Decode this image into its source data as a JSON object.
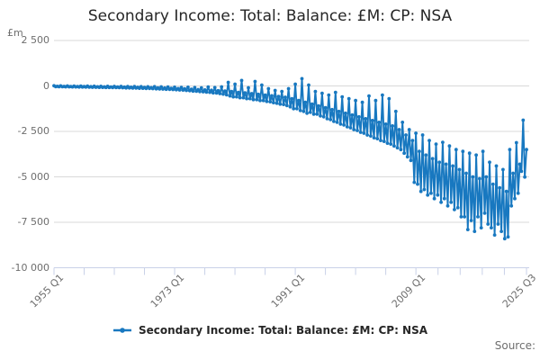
{
  "title": "Secondary Income: Total: Balance: £M: CP: NSA",
  "y_axis": {
    "unit": "£m",
    "ticks": [
      2500,
      0,
      -2500,
      -5000,
      -7500,
      -10000
    ],
    "tick_labels": [
      "2 500",
      "0",
      "-2 500",
      "-5 000",
      "-7 500",
      "-10 000"
    ]
  },
  "x_axis": {
    "labels": [
      "1955 Q1",
      "1973 Q1",
      "1991 Q1",
      "2009 Q1",
      "2025 Q3"
    ],
    "major_indices": [
      0,
      72,
      144,
      216,
      282
    ],
    "minor_indices": [
      18,
      36,
      54,
      90,
      108,
      126,
      162,
      180,
      198,
      229.2,
      242.4,
      255.6,
      268.8
    ]
  },
  "legend": {
    "label": "Secondary Income: Total: Balance: £M: CP: NSA"
  },
  "source": "Source:",
  "colors": {
    "line": "#1878c0",
    "grid": "#d9d9d9",
    "axis": "#c9d1e8",
    "muted_text": "#6e6e6e",
    "title_text": "#262626"
  },
  "chart_data": {
    "type": "line",
    "title": "Secondary Income: Total: Balance: £M: CP: NSA",
    "series_name": "Secondary Income: Total: Balance: £M: CP: NSA",
    "xlabel": "",
    "ylabel": "£m",
    "frequency": "quarterly",
    "start": "1955 Q1",
    "end": "2025 Q3",
    "ylim": [
      -10000,
      2500
    ],
    "grid": "horizontal",
    "legend_position": "bottom",
    "values": [
      10,
      -40,
      -20,
      -45,
      5,
      -45,
      -25,
      -50,
      0,
      -50,
      -30,
      -55,
      -5,
      -55,
      -30,
      -60,
      -10,
      -60,
      -35,
      -65,
      -10,
      -70,
      -40,
      -75,
      -15,
      -75,
      -45,
      -80,
      -20,
      -80,
      -50,
      -85,
      -20,
      -85,
      -55,
      -90,
      -25,
      -90,
      -60,
      -95,
      -25,
      -100,
      -65,
      -110,
      -30,
      -110,
      -70,
      -120,
      -35,
      -120,
      -75,
      -130,
      -40,
      -130,
      -85,
      -140,
      -45,
      -140,
      -95,
      -150,
      -40,
      -160,
      -105,
      -170,
      -50,
      -175,
      -115,
      -185,
      -60,
      -190,
      -130,
      -200,
      -70,
      -210,
      -145,
      -225,
      -80,
      -230,
      -160,
      -250,
      -70,
      -260,
      -180,
      -280,
      -90,
      -290,
      -200,
      -310,
      -110,
      -320,
      -220,
      -340,
      -60,
      -350,
      -240,
      -380,
      -90,
      -390,
      -260,
      -420,
      -50,
      -450,
      -280,
      -490,
      200,
      -550,
      -300,
      -600,
      100,
      -600,
      -350,
      -650,
      300,
      -650,
      -380,
      -700,
      -100,
      -700,
      -420,
      -750,
      250,
      -750,
      -460,
      -800,
      50,
      -800,
      -500,
      -850,
      -150,
      -870,
      -540,
      -920,
      -250,
      -950,
      -580,
      -1000,
      -300,
      -1020,
      -620,
      -1080,
      -150,
      -1150,
      -700,
      -1250,
      100,
      -1250,
      -800,
      -1350,
      400,
      -1400,
      -900,
      -1500,
      50,
      -1450,
      -1000,
      -1550,
      -300,
      -1550,
      -1100,
      -1650,
      -400,
      -1700,
      -1200,
      -1800,
      -500,
      -1850,
      -1300,
      -1950,
      -350,
      -2000,
      -1400,
      -2100,
      -600,
      -2150,
      -1500,
      -2250,
      -700,
      -2300,
      -1600,
      -2400,
      -800,
      -2450,
      -1700,
      -2550,
      -900,
      -2600,
      -1800,
      -2700,
      -550,
      -2750,
      -1900,
      -2850,
      -800,
      -2900,
      -2000,
      -3000,
      -500,
      -3050,
      -2100,
      -3150,
      -700,
      -3200,
      -2200,
      -3300,
      -1400,
      -3400,
      -2400,
      -3500,
      -2000,
      -3700,
      -2700,
      -3900,
      -2400,
      -4100,
      -3000,
      -5300,
      -2600,
      -5400,
      -3600,
      -5800,
      -2700,
      -5700,
      -3800,
      -6000,
      -3000,
      -5900,
      -4000,
      -6200,
      -3200,
      -6000,
      -4200,
      -6400,
      -3100,
      -6200,
      -4300,
      -6600,
      -3300,
      -6400,
      -4400,
      -6800,
      -3500,
      -6700,
      -4600,
      -7200,
      -3600,
      -7200,
      -4800,
      -7900,
      -3700,
      -7400,
      -5000,
      -8000,
      -3800,
      -7200,
      -5100,
      -7800,
      -3600,
      -7000,
      -5000,
      -7600,
      -4200,
      -7800,
      -5400,
      -8200,
      -4400,
      -7600,
      -5600,
      -8000,
      -4600,
      -8400,
      -5800,
      -8300,
      -3500,
      -6600,
      -4800,
      -6200,
      -3120,
      -5900,
      -4300,
      -4700,
      -1880,
      -5010,
      -3500
    ]
  }
}
